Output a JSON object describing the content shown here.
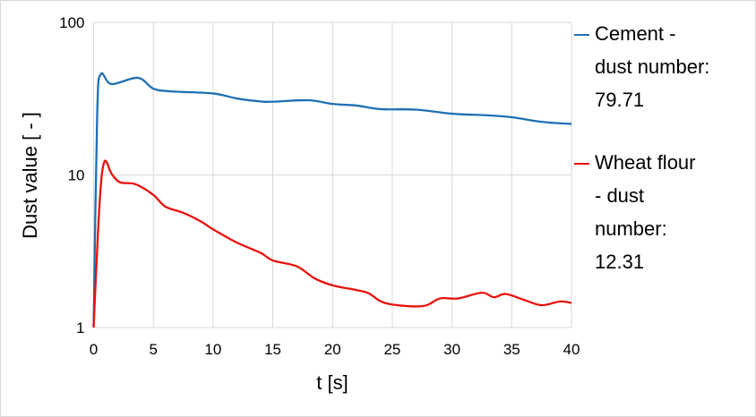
{
  "chart_data": {
    "type": "line",
    "title": "",
    "xlabel": "t [s]",
    "ylabel": "Dust value [ - ]",
    "xlim": [
      0,
      40
    ],
    "ylim": [
      1,
      100
    ],
    "yscale": "log",
    "xticks": [
      "0",
      "5",
      "10",
      "15",
      "20",
      "25",
      "30",
      "35",
      "40"
    ],
    "yticks": [
      "1",
      "10",
      "100"
    ],
    "grid": true,
    "legend_position": "right",
    "series": [
      {
        "name": "Cement - dust number: 79.71",
        "color": "#1f6fb4",
        "x": [
          0,
          0.3,
          0.6,
          1.5,
          3.7,
          5,
          6.5,
          10,
          12,
          14,
          15,
          18,
          20,
          22,
          24,
          27,
          30,
          33,
          35,
          37.5,
          40
        ],
        "y": [
          1,
          25,
          45.7,
          39.4,
          43.3,
          36.8,
          35.3,
          34.2,
          31.7,
          30.3,
          30.2,
          30.9,
          29.2,
          28.5,
          27.0,
          26.8,
          25.2,
          24.6,
          23.9,
          22.3,
          21.6
        ]
      },
      {
        "name": "Wheat flour - dust number: 12.31",
        "color": "#e8120c",
        "x": [
          0,
          0.5,
          0.9,
          1.5,
          2.2,
          3.5,
          5,
          6,
          7.5,
          9,
          10,
          12,
          14,
          15,
          17,
          18.5,
          20,
          22,
          23,
          24.5,
          27.5,
          29,
          30.5,
          32.5,
          33.5,
          34.5,
          36,
          37.5,
          39,
          40
        ],
        "y": [
          1,
          6.5,
          12.2,
          10.2,
          8.95,
          8.7,
          7.4,
          6.2,
          5.65,
          4.95,
          4.4,
          3.6,
          3.08,
          2.75,
          2.52,
          2.1,
          1.89,
          1.76,
          1.68,
          1.44,
          1.38,
          1.55,
          1.55,
          1.69,
          1.58,
          1.66,
          1.52,
          1.4,
          1.48,
          1.45
        ]
      }
    ]
  },
  "legend": [
    {
      "lines": [
        " Cement -",
        "dust number:",
        "79.71"
      ]
    },
    {
      "lines": [
        " Wheat flour",
        "- dust",
        "number:",
        "12.31"
      ]
    }
  ]
}
